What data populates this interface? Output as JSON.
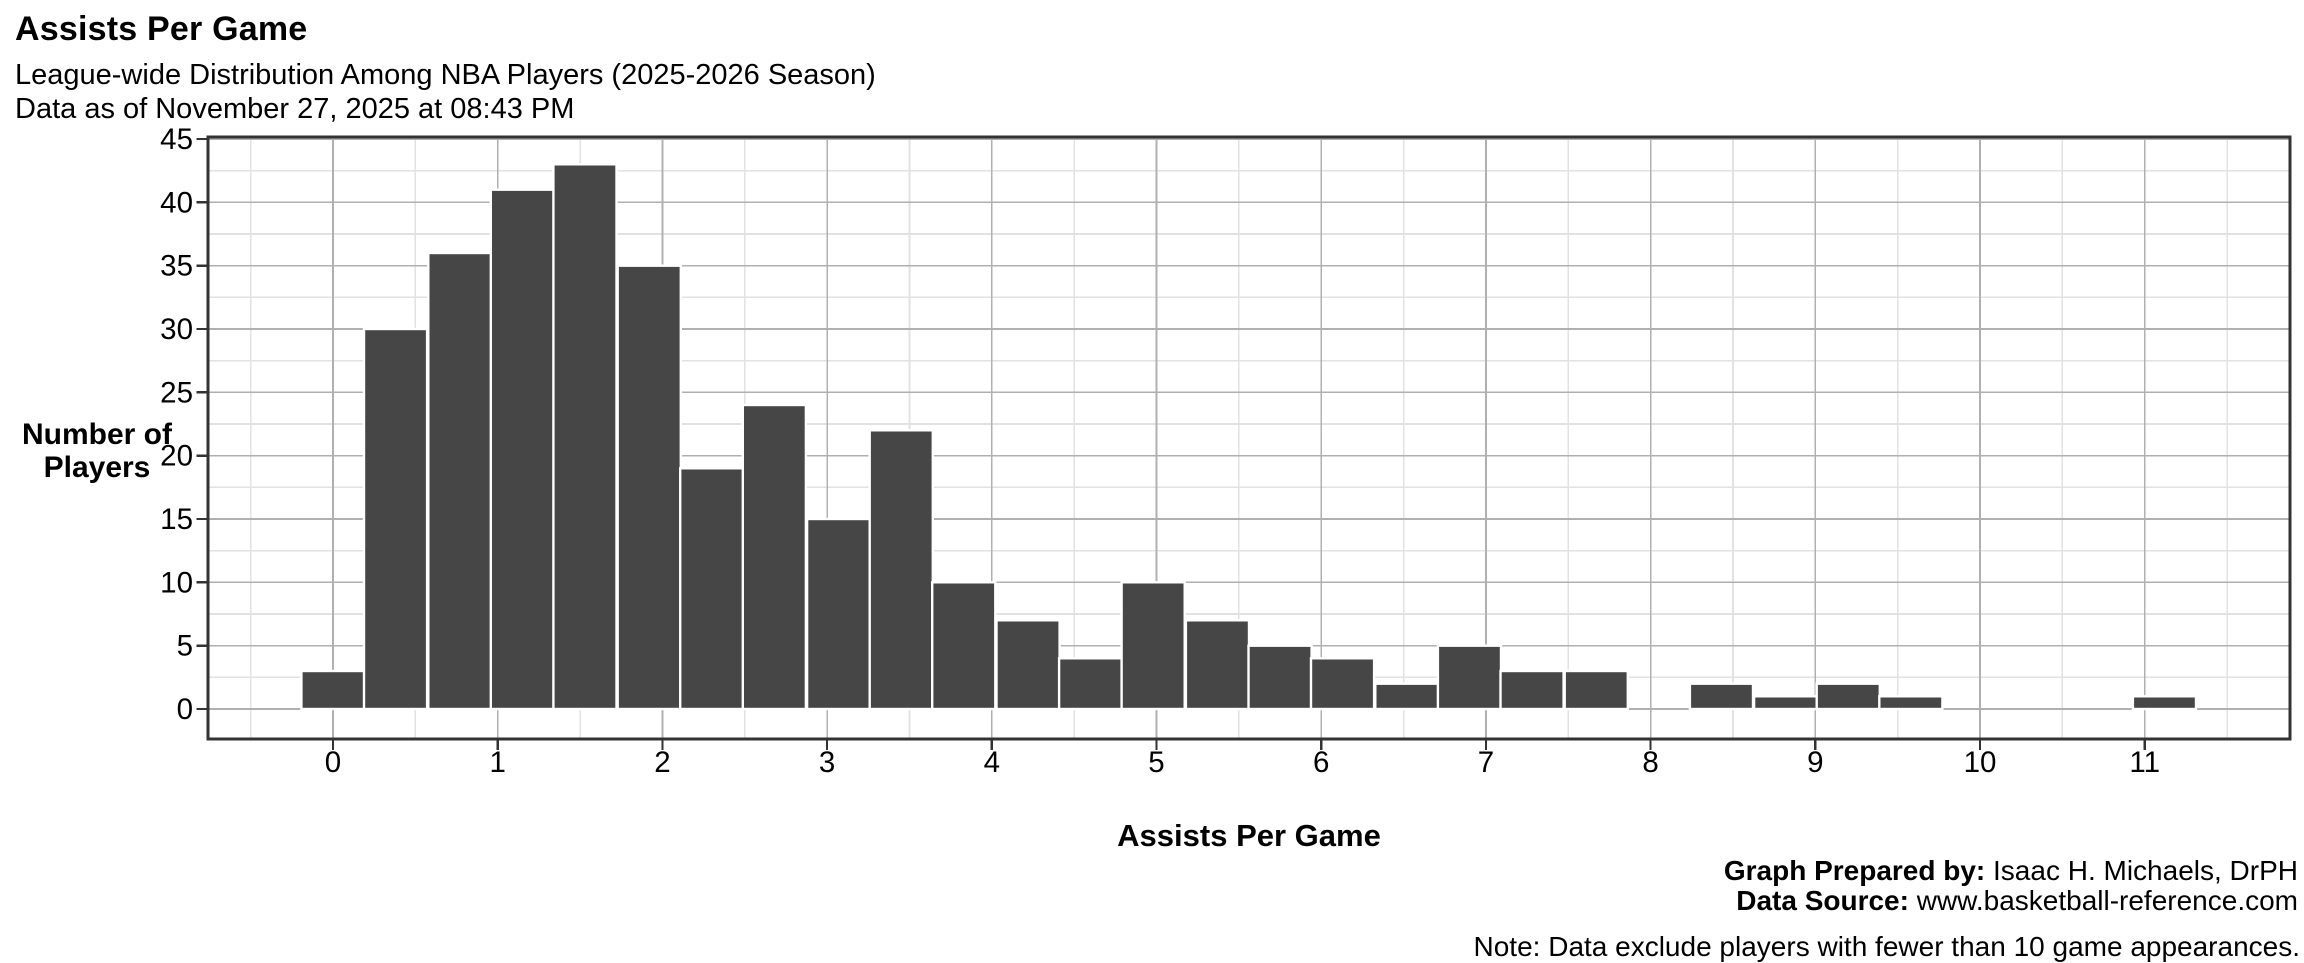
{
  "header": {
    "title": "Assists Per Game",
    "subtitle": "League-wide Distribution Among NBA Players (2025-2026 Season)",
    "as_of_line": "Data as of November 27, 2025 at 08:43 PM"
  },
  "chart_data": {
    "type": "bar",
    "title": "Assists Per Game",
    "xlabel": "Assists Per Game",
    "ylabel_line1": "Number of",
    "ylabel_line2": "Players",
    "bin_width": 0.3833,
    "bin_centers": [
      0.0,
      0.38,
      0.77,
      1.15,
      1.53,
      1.92,
      2.3,
      2.68,
      3.07,
      3.45,
      3.83,
      4.22,
      4.6,
      4.98,
      5.37,
      5.75,
      6.13,
      6.52,
      6.9,
      7.28,
      7.67,
      8.05,
      8.43,
      8.82,
      9.2,
      9.58,
      9.97,
      10.35,
      10.73,
      11.12
    ],
    "values": [
      3,
      30,
      36,
      41,
      43,
      35,
      19,
      24,
      15,
      22,
      10,
      7,
      4,
      10,
      7,
      5,
      4,
      2,
      5,
      3,
      3,
      0,
      2,
      1,
      2,
      1,
      0,
      0,
      0,
      1
    ],
    "x_ticks": [
      0,
      1,
      2,
      3,
      4,
      5,
      6,
      7,
      8,
      9,
      10,
      11
    ],
    "y_ticks": [
      0,
      5,
      10,
      15,
      20,
      25,
      30,
      35,
      40,
      45
    ],
    "xlim": [
      -0.76,
      11.88
    ],
    "ylim": [
      0,
      45
    ],
    "grid": {
      "major": true,
      "minor": true
    },
    "legend": "none"
  },
  "footer": {
    "prepared_by_label": "Graph Prepared by:",
    "prepared_by_value": " Isaac H. Michaels, DrPH",
    "source_label": "Data Source:",
    "source_value": "  www.basketball-reference.com",
    "note": "Note: Data exclude players with fewer than 10 game appearances."
  },
  "colors": {
    "bar_fill": "#464646",
    "bar_stroke": "#ffffff",
    "axis": "#333333",
    "grid_major": "#b0b0b0",
    "grid_minor": "#e2e2e2",
    "text": "#000000",
    "background": "#ffffff"
  }
}
